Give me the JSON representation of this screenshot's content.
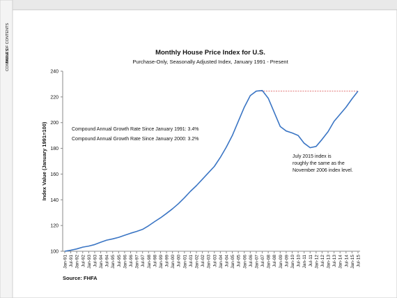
{
  "sidebar": {
    "tabs": [
      "TABLE OF CONTENTS",
      "COMMENTS"
    ]
  },
  "chart_data": {
    "type": "line",
    "title": "Monthly House Price Index for U.S.",
    "subtitle": "Purchase-Only, Seasonally Adjusted Index, January 1991 - Present",
    "y_label": "Index Value (January 1991=100)",
    "source": "Source: FHFA",
    "annotations": [
      "Compound Annual Growth Rate Since January 1991:  3.4%",
      "Compound Annual Growth Rate Since January 2000:  3.2%"
    ],
    "note": [
      "July 2015 index is",
      "roughly the same as the",
      "November 2006 index level."
    ],
    "categories": [
      "Jan-91",
      "Jul-91",
      "Jan-92",
      "Jul-92",
      "Jan-93",
      "Jul-93",
      "Jan-94",
      "Jul-94",
      "Jan-95",
      "Jul-95",
      "Jan-96",
      "Jul-96",
      "Jan-97",
      "Jul-97",
      "Jan-98",
      "Jul-98",
      "Jan-99",
      "Jul-99",
      "Jan-00",
      "Jul-00",
      "Jan-01",
      "Jul-01",
      "Jan-02",
      "Jul-02",
      "Jan-03",
      "Jul-03",
      "Jan-04",
      "Jul-04",
      "Jan-05",
      "Jul-05",
      "Jan-06",
      "Jul-06",
      "Jan-07",
      "Jul-07",
      "Jan-08",
      "Jul-08",
      "Jan-09",
      "Jul-09",
      "Jan-10",
      "Jul-10",
      "Jan-11",
      "Jul-11",
      "Jan-12",
      "Jul-12",
      "Jan-13",
      "Jul-13",
      "Jan-14",
      "Jul-14",
      "Jan-15",
      "Jul-15"
    ],
    "values": [
      100.0,
      100.8,
      101.8,
      103.2,
      104.0,
      105.2,
      107.0,
      108.6,
      109.6,
      110.8,
      112.4,
      114.0,
      115.4,
      117.0,
      119.8,
      123.0,
      126.0,
      129.4,
      133.0,
      137.0,
      141.6,
      146.6,
      151.0,
      156.0,
      161.0,
      166.0,
      173.0,
      181.0,
      190.0,
      201.0,
      212.0,
      221.0,
      224.5,
      225.0,
      219.0,
      208.0,
      197.0,
      193.5,
      192.0,
      190.0,
      184.0,
      180.5,
      181.5,
      187.0,
      193.0,
      201.0,
      206.5,
      212.0,
      218.5,
      224.5
    ],
    "color": "#3a75c4",
    "reference_line": {
      "value": 224.5,
      "color": "#e06666"
    },
    "ylim": [
      100,
      240
    ],
    "yticks": [
      100,
      120,
      140,
      160,
      180,
      200,
      220,
      240
    ]
  }
}
